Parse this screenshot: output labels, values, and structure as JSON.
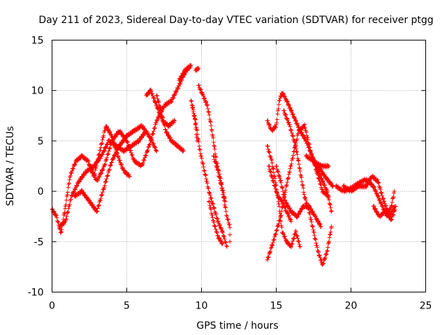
{
  "chart_data": {
    "type": "scatter",
    "title": "Day 211 of 2023, Sidereal Day-to-day VTEC variation (SDTVAR) for receiver ptgg",
    "xlabel": "GPS time / hours",
    "ylabel": "SDTVAR / TECUs",
    "xlim": [
      0,
      25
    ],
    "ylim": [
      -10,
      15
    ],
    "xticks": [
      0,
      5,
      10,
      15,
      20,
      25
    ],
    "yticks": [
      -10,
      -5,
      0,
      5,
      10,
      15
    ],
    "grid": true,
    "marker": "+",
    "color": "#ff0000",
    "series": [
      {
        "name": "SDTVAR",
        "tracks": [
          [
            [
              0.0,
              -1.8
            ],
            [
              0.3,
              -2.5
            ],
            [
              0.6,
              -4.2
            ],
            [
              0.9,
              -1.5
            ],
            [
              1.2,
              1.5
            ],
            [
              1.6,
              3.0
            ],
            [
              2.0,
              3.5
            ],
            [
              2.4,
              3.0
            ],
            [
              2.8,
              1.5
            ],
            [
              3.2,
              4.0
            ],
            [
              3.6,
              6.5
            ],
            [
              4.0,
              5.5
            ],
            [
              4.4,
              3.5
            ],
            [
              4.8,
              2.0
            ],
            [
              5.2,
              1.5
            ]
          ],
          [
            [
              0.5,
              -3.5
            ],
            [
              0.9,
              -3.0
            ],
            [
              1.3,
              -0.5
            ],
            [
              1.8,
              1.0
            ],
            [
              2.3,
              2.0
            ],
            [
              2.8,
              2.5
            ],
            [
              3.3,
              3.5
            ],
            [
              3.8,
              5.0
            ],
            [
              4.3,
              4.5
            ],
            [
              4.8,
              4.0
            ],
            [
              5.3,
              4.5
            ],
            [
              5.8,
              5.0
            ],
            [
              6.3,
              6.0
            ]
          ],
          [
            [
              1.5,
              -0.5
            ],
            [
              2.0,
              0.0
            ],
            [
              2.5,
              -1.0
            ],
            [
              3.0,
              -2.0
            ],
            [
              3.5,
              0.5
            ],
            [
              4.0,
              3.0
            ],
            [
              4.5,
              4.5
            ],
            [
              5.0,
              5.5
            ],
            [
              5.5,
              6.0
            ],
            [
              6.0,
              6.5
            ],
            [
              6.5,
              5.5
            ],
            [
              7.0,
              4.0
            ]
          ],
          [
            [
              2.5,
              2.5
            ],
            [
              3.0,
              1.0
            ],
            [
              3.5,
              2.5
            ],
            [
              4.0,
              5.0
            ],
            [
              4.5,
              6.0
            ],
            [
              5.0,
              5.0
            ],
            [
              5.5,
              3.0
            ],
            [
              6.0,
              2.5
            ],
            [
              6.5,
              4.5
            ],
            [
              7.0,
              7.0
            ],
            [
              7.5,
              8.5
            ],
            [
              8.0,
              9.0
            ],
            [
              8.5,
              10.5
            ],
            [
              8.8,
              11.5
            ],
            [
              9.0,
              12.0
            ],
            [
              9.2,
              12.3
            ]
          ],
          [
            [
              6.3,
              9.5
            ],
            [
              6.6,
              10.0
            ],
            [
              7.0,
              8.5
            ],
            [
              7.4,
              7.0
            ],
            [
              7.8,
              6.5
            ],
            [
              8.2,
              7.0
            ]
          ],
          [
            [
              7.0,
              9.5
            ],
            [
              7.3,
              8.0
            ],
            [
              7.6,
              6.0
            ],
            [
              8.0,
              5.0
            ],
            [
              8.4,
              4.5
            ],
            [
              8.8,
              4.0
            ]
          ],
          [
            [
              8.5,
              11.0
            ],
            [
              8.9,
              12.0
            ],
            [
              9.3,
              12.5
            ]
          ],
          [
            [
              9.6,
              12.0
            ],
            [
              9.8,
              12.2
            ]
          ],
          [
            [
              9.8,
              10.5
            ],
            [
              10.1,
              9.5
            ],
            [
              10.4,
              8.5
            ],
            [
              10.7,
              6.0
            ],
            [
              11.0,
              3.0
            ],
            [
              11.3,
              1.0
            ],
            [
              11.6,
              -1.0
            ]
          ],
          [
            [
              9.3,
              9.0
            ],
            [
              9.6,
              7.0
            ],
            [
              9.9,
              4.0
            ],
            [
              10.2,
              2.0
            ],
            [
              10.5,
              0.0
            ],
            [
              10.8,
              -1.5
            ],
            [
              11.1,
              -3.0
            ],
            [
              11.4,
              -4.0
            ],
            [
              11.7,
              -5.5
            ]
          ],
          [
            [
              10.5,
              -1.0
            ],
            [
              10.8,
              -3.0
            ],
            [
              11.1,
              -4.5
            ],
            [
              11.4,
              -5.2
            ]
          ],
          [
            [
              10.8,
              3.5
            ],
            [
              11.1,
              2.0
            ],
            [
              11.4,
              0.0
            ],
            [
              11.7,
              -2.5
            ],
            [
              11.9,
              -3.5
            ],
            [
              11.9,
              -5.0
            ]
          ],
          [
            [
              9.4,
              8.5
            ],
            [
              9.6,
              6.5
            ],
            [
              9.7,
              5.0
            ]
          ],
          [
            [
              14.4,
              4.5
            ],
            [
              14.7,
              3.0
            ],
            [
              15.0,
              0.5
            ],
            [
              15.2,
              -1.5
            ],
            [
              15.4,
              -4.0
            ],
            [
              15.7,
              -5.0
            ],
            [
              16.0,
              -5.5
            ],
            [
              16.3,
              -4.0
            ],
            [
              16.6,
              -5.5
            ]
          ],
          [
            [
              14.4,
              7.0
            ],
            [
              14.7,
              6.0
            ],
            [
              15.0,
              6.5
            ],
            [
              15.2,
              9.0
            ],
            [
              15.4,
              9.8
            ],
            [
              15.7,
              9.0
            ],
            [
              16.0,
              8.0
            ],
            [
              16.3,
              7.0
            ],
            [
              16.6,
              6.0
            ],
            [
              17.0,
              5.0
            ],
            [
              17.4,
              3.5
            ],
            [
              17.8,
              2.0
            ],
            [
              18.1,
              1.0
            ],
            [
              18.4,
              0.0
            ],
            [
              18.7,
              -2.0
            ]
          ],
          [
            [
              14.5,
              2.5
            ],
            [
              14.8,
              1.0
            ],
            [
              15.1,
              -0.5
            ],
            [
              15.4,
              -1.0
            ],
            [
              15.7,
              -2.0
            ],
            [
              16.0,
              -3.0
            ]
          ],
          [
            [
              14.4,
              -6.8
            ],
            [
              14.7,
              -5.5
            ],
            [
              15.0,
              -4.0
            ],
            [
              15.3,
              -2.5
            ],
            [
              15.6,
              0.0
            ],
            [
              15.9,
              2.0
            ],
            [
              16.2,
              4.0
            ],
            [
              16.5,
              6.0
            ],
            [
              16.9,
              6.5
            ],
            [
              17.3,
              4.0
            ],
            [
              17.7,
              2.0
            ],
            [
              18.1,
              0.0
            ],
            [
              18.5,
              -0.5
            ]
          ],
          [
            [
              15.5,
              8.0
            ],
            [
              15.9,
              6.5
            ],
            [
              16.3,
              4.5
            ],
            [
              16.6,
              2.0
            ],
            [
              16.9,
              -0.5
            ],
            [
              17.2,
              -2.0
            ],
            [
              17.5,
              -4.0
            ],
            [
              17.8,
              -6.0
            ],
            [
              18.1,
              -7.3
            ],
            [
              18.4,
              -6.0
            ],
            [
              18.7,
              -3.5
            ]
          ],
          [
            [
              15.0,
              2.5
            ],
            [
              15.3,
              1.0
            ],
            [
              15.6,
              -1.0
            ],
            [
              16.0,
              -2.0
            ],
            [
              16.4,
              -2.5
            ],
            [
              16.8,
              -1.5
            ],
            [
              17.2,
              -1.5
            ],
            [
              17.6,
              -2.5
            ],
            [
              18.0,
              -3.5
            ]
          ],
          [
            [
              17.0,
              3.5
            ],
            [
              17.5,
              3.0
            ],
            [
              18.0,
              2.5
            ],
            [
              18.5,
              2.5
            ]
          ],
          [
            [
              17.5,
              3.0
            ],
            [
              18.0,
              2.0
            ],
            [
              18.5,
              1.0
            ],
            [
              18.8,
              0.5
            ]
          ],
          [
            [
              19.0,
              0.5
            ],
            [
              19.5,
              0.0
            ],
            [
              20.0,
              0.3
            ],
            [
              20.5,
              0.8
            ],
            [
              21.0,
              1.2
            ],
            [
              21.5,
              0.5
            ],
            [
              21.8,
              -0.5
            ],
            [
              22.1,
              -1.5
            ],
            [
              22.4,
              -2.5
            ],
            [
              22.7,
              -1.5
            ],
            [
              22.9,
              0.0
            ]
          ],
          [
            [
              19.5,
              0.5
            ],
            [
              20.0,
              0.0
            ],
            [
              20.5,
              0.5
            ],
            [
              21.0,
              0.5
            ],
            [
              21.4,
              1.5
            ],
            [
              21.8,
              1.0
            ],
            [
              22.2,
              -1.0
            ],
            [
              22.6,
              -2.5
            ],
            [
              22.9,
              -1.5
            ]
          ],
          [
            [
              21.5,
              -1.5
            ],
            [
              21.9,
              -2.5
            ],
            [
              22.3,
              -2.0
            ],
            [
              22.7,
              -2.8
            ],
            [
              23.0,
              -1.5
            ]
          ]
        ]
      }
    ]
  }
}
